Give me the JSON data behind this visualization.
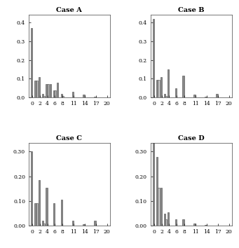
{
  "cases": [
    "Case A",
    "Case B",
    "Case C",
    "Case D"
  ],
  "case_A_dark": [
    0.37,
    0.09,
    0.11,
    0.02,
    0.07,
    0.07,
    0.04,
    0.08,
    0.02,
    0.0,
    0.0,
    0.03,
    0.0,
    0.0,
    0.015,
    0.0,
    0.0,
    0.004,
    0.0,
    0.0,
    0.0
  ],
  "case_A_light": [
    0.0,
    0.09,
    0.0,
    0.01,
    0.07,
    0.0,
    0.04,
    0.0,
    0.01,
    0.0,
    0.0,
    0.0,
    0.0,
    0.0,
    0.0,
    0.0,
    0.0,
    0.0,
    0.0,
    0.0,
    0.0
  ],
  "case_B_dark": [
    0.42,
    0.095,
    0.11,
    0.02,
    0.15,
    0.0,
    0.05,
    0.0,
    0.115,
    0.0,
    0.0,
    0.015,
    0.0,
    0.0,
    0.004,
    0.0,
    0.0,
    0.02,
    0.0,
    0.0,
    0.0
  ],
  "case_B_light": [
    0.0,
    0.095,
    0.0,
    0.01,
    0.0,
    0.0,
    0.0,
    0.0,
    0.0,
    0.0,
    0.0,
    0.0,
    0.0,
    0.0,
    0.0,
    0.0,
    0.0,
    0.0,
    0.0,
    0.0,
    0.0
  ],
  "case_C_dark": [
    0.3,
    0.09,
    0.185,
    0.02,
    0.155,
    0.0,
    0.09,
    0.0,
    0.105,
    0.0,
    0.0,
    0.02,
    0.0,
    0.0,
    0.005,
    0.0,
    0.0,
    0.02,
    0.0,
    0.0,
    0.0
  ],
  "case_C_light": [
    0.0,
    0.09,
    0.0,
    0.01,
    0.0,
    0.0,
    0.0,
    0.0,
    0.0,
    0.0,
    0.0,
    0.0,
    0.0,
    0.0,
    0.0,
    0.0,
    0.0,
    0.0,
    0.0,
    0.0,
    0.0
  ],
  "case_D_dark": [
    0.335,
    0.28,
    0.155,
    0.05,
    0.055,
    0.0,
    0.025,
    0.0,
    0.025,
    0.0,
    0.0,
    0.008,
    0.0,
    0.0,
    0.003,
    0.0,
    0.0,
    0.0,
    0.0,
    0.0,
    0.0
  ],
  "case_D_light": [
    0.0,
    0.155,
    0.0,
    0.025,
    0.0,
    0.0,
    0.0,
    0.0,
    0.0,
    0.0,
    0.0,
    0.0,
    0.0,
    0.0,
    0.0,
    0.0,
    0.0,
    0.0,
    0.0,
    0.0,
    0.0
  ],
  "bar_color_dark": "#888888",
  "bar_color_light": "#c8c8c8",
  "bar_edge_color": "#444444",
  "xticks": [
    0,
    2,
    4,
    6,
    8,
    11,
    14,
    17,
    20
  ],
  "ylim_AB": [
    0.0,
    0.44
  ],
  "ylim_CD": [
    0.0,
    0.335
  ],
  "yticks_AB": [
    0.0,
    0.1,
    0.2,
    0.3,
    0.4
  ],
  "yticks_CD": [
    0.0,
    0.1,
    0.2,
    0.3
  ],
  "background_color": "#ffffff"
}
